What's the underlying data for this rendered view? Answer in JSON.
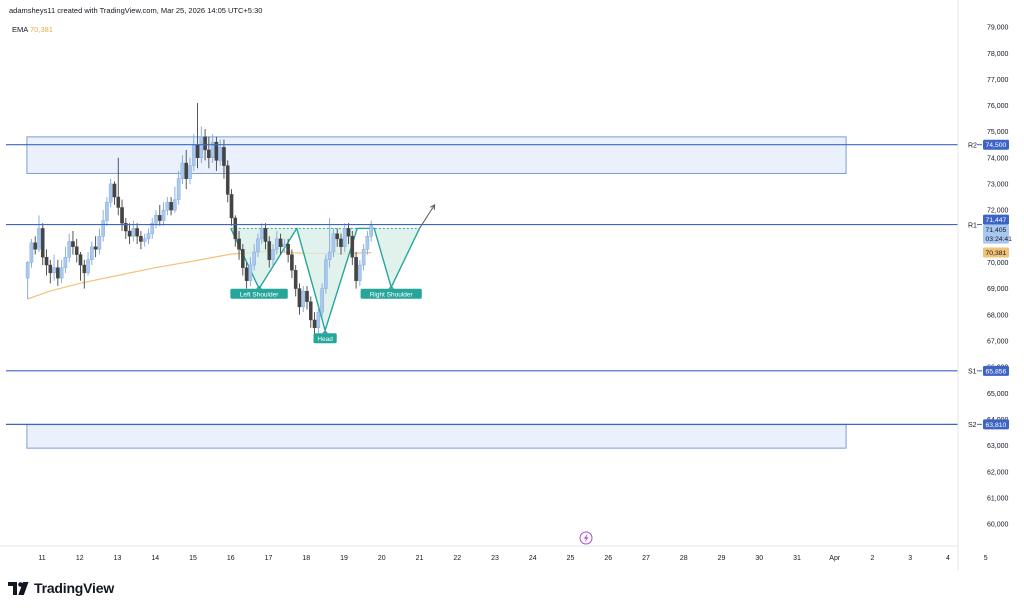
{
  "header": {
    "attribution": "adamsheys11 created with TradingView.com, Mar 25, 2026 14:05 UTC+5:30"
  },
  "indicator": {
    "name": "EMA",
    "value": "70,381"
  },
  "brand": {
    "name": "TradingView"
  },
  "colors": {
    "up": "#a9c8ef",
    "down": "#444444",
    "ema": "#f3c27a",
    "level": "#3d64c4",
    "zone_fill": "#eaf1fc",
    "zone_stroke": "#7b9dd6",
    "pattern_line": "#26a69a",
    "pattern_fill": "#d7eee7",
    "label_bg": "#26a69a",
    "ema_badge": "#f3c27a",
    "price_badge": "#a9c8ef"
  },
  "chart_data": {
    "type": "candlestick",
    "title": "",
    "xlabel": "",
    "ylabel": "",
    "ylim": [
      59500,
      79300
    ],
    "grid": false,
    "y_ticks": [
      79000,
      78000,
      77000,
      76000,
      75000,
      74000,
      73000,
      72000,
      71000,
      70000,
      69000,
      68000,
      67000,
      66000,
      65000,
      64000,
      63000,
      62000,
      61000,
      60000
    ],
    "x_ticks": [
      "11",
      "12",
      "13",
      "14",
      "15",
      "16",
      "17",
      "18",
      "19",
      "20",
      "21",
      "22",
      "23",
      "24",
      "25",
      "26",
      "27",
      "28",
      "29",
      "30",
      "31",
      "Apr",
      "2",
      "3",
      "4",
      "5"
    ],
    "x_tick_days": [
      11,
      12,
      13,
      14,
      15,
      16,
      17,
      18,
      19,
      20,
      21,
      22,
      23,
      24,
      25,
      26,
      27,
      28,
      29,
      30,
      31,
      32,
      33,
      34,
      35,
      36
    ],
    "candles": [
      [
        10.62,
        69400,
        70000,
        68600,
        70050
      ],
      [
        10.72,
        70000,
        70750,
        69800,
        70900
      ],
      [
        10.82,
        70750,
        70500,
        70300,
        71000
      ],
      [
        10.92,
        70500,
        71300,
        70400,
        71800
      ],
      [
        11.02,
        71300,
        70200,
        69900,
        71500
      ],
      [
        11.12,
        70200,
        69900,
        69500,
        70500
      ],
      [
        11.22,
        69900,
        69600,
        69200,
        70100
      ],
      [
        11.32,
        69600,
        69800,
        69300,
        70300
      ],
      [
        11.42,
        69800,
        69400,
        69100,
        70100
      ],
      [
        11.52,
        69400,
        69800,
        69200,
        70100
      ],
      [
        11.62,
        69800,
        70200,
        69600,
        70600
      ],
      [
        11.72,
        70200,
        70800,
        70000,
        71100
      ],
      [
        11.82,
        70800,
        70600,
        70300,
        71200
      ],
      [
        11.92,
        70600,
        70300,
        70000,
        70900
      ],
      [
        12.02,
        70300,
        69900,
        69300,
        70400
      ],
      [
        12.12,
        69900,
        69600,
        69000,
        70100
      ],
      [
        12.22,
        69600,
        70100,
        69500,
        70400
      ],
      [
        12.32,
        70100,
        70600,
        69900,
        70800
      ],
      [
        12.42,
        70600,
        70500,
        70200,
        71000
      ],
      [
        12.52,
        70500,
        71000,
        70300,
        71300
      ],
      [
        12.62,
        71000,
        71600,
        70800,
        72000
      ],
      [
        12.72,
        71600,
        72300,
        71400,
        72500
      ],
      [
        12.82,
        72300,
        73000,
        72100,
        73200
      ],
      [
        12.92,
        73000,
        72500,
        72200,
        73100
      ],
      [
        13.02,
        72500,
        72100,
        71800,
        74000
      ],
      [
        13.12,
        72100,
        71500,
        71200,
        72400
      ],
      [
        13.22,
        71500,
        71200,
        70900,
        71700
      ],
      [
        13.32,
        71200,
        71000,
        70700,
        71500
      ],
      [
        13.42,
        71000,
        71300,
        70800,
        71600
      ],
      [
        13.52,
        71300,
        71000,
        70700,
        71500
      ],
      [
        13.62,
        71000,
        70800,
        70500,
        71200
      ],
      [
        13.72,
        70800,
        70900,
        70600,
        71100
      ],
      [
        13.82,
        70900,
        71100,
        70700,
        71300
      ],
      [
        13.92,
        71100,
        71500,
        70900,
        71700
      ],
      [
        14.02,
        71500,
        71800,
        71300,
        72000
      ],
      [
        14.12,
        71800,
        71600,
        71400,
        72200
      ],
      [
        14.22,
        71600,
        72000,
        71400,
        72300
      ],
      [
        14.32,
        72000,
        72300,
        71800,
        72500
      ],
      [
        14.42,
        72300,
        72000,
        71800,
        72500
      ],
      [
        14.52,
        72000,
        72400,
        71900,
        72900
      ],
      [
        14.62,
        72400,
        73200,
        72200,
        73500
      ],
      [
        14.72,
        73200,
        73800,
        73000,
        74100
      ],
      [
        14.82,
        73800,
        73200,
        72800,
        74300
      ],
      [
        14.92,
        73200,
        73700,
        73000,
        74000
      ],
      [
        15.02,
        73700,
        74500,
        73500,
        74900
      ],
      [
        15.12,
        74500,
        74000,
        73600,
        76100
      ],
      [
        15.22,
        74000,
        74800,
        73800,
        75200
      ],
      [
        15.32,
        74800,
        74300,
        73900,
        75100
      ],
      [
        15.42,
        74300,
        74000,
        73600,
        74800
      ],
      [
        15.52,
        74000,
        74600,
        73800,
        74900
      ],
      [
        15.62,
        74600,
        73900,
        73500,
        74800
      ],
      [
        15.72,
        73900,
        74400,
        73700,
        74700
      ],
      [
        15.82,
        74400,
        73700,
        73200,
        74700
      ],
      [
        15.92,
        73700,
        72600,
        72300,
        73900
      ],
      [
        16.02,
        72600,
        71700,
        71400,
        72800
      ],
      [
        16.12,
        71700,
        70900,
        70600,
        71800
      ],
      [
        16.22,
        70900,
        70500,
        70100,
        71200
      ],
      [
        16.32,
        70500,
        69800,
        69500,
        70700
      ],
      [
        16.42,
        69800,
        69300,
        69000,
        70000
      ],
      [
        16.52,
        69300,
        69900,
        69100,
        70200
      ],
      [
        16.62,
        69900,
        70400,
        69700,
        70700
      ],
      [
        16.72,
        70400,
        70900,
        70200,
        71100
      ],
      [
        16.82,
        70900,
        71300,
        70700,
        71500
      ],
      [
        16.92,
        71300,
        70800,
        70500,
        71500
      ],
      [
        17.02,
        70800,
        70100,
        69800,
        71000
      ],
      [
        17.12,
        70100,
        70500,
        69900,
        70700
      ],
      [
        17.22,
        70500,
        70900,
        70300,
        71200
      ],
      [
        17.32,
        70900,
        70600,
        70300,
        71100
      ],
      [
        17.42,
        70600,
        70700,
        70400,
        70900
      ],
      [
        17.52,
        70700,
        70300,
        70000,
        70900
      ],
      [
        17.62,
        70300,
        69700,
        69400,
        70500
      ],
      [
        17.72,
        69700,
        69000,
        68700,
        69900
      ],
      [
        17.82,
        69000,
        68300,
        68000,
        69200
      ],
      [
        17.92,
        68300,
        68900,
        68100,
        69100
      ],
      [
        18.02,
        68900,
        68500,
        68200,
        69100
      ],
      [
        18.12,
        68500,
        67800,
        67500,
        68700
      ],
      [
        18.22,
        67800,
        67500,
        67200,
        68100
      ],
      [
        18.32,
        67500,
        68100,
        67300,
        68300
      ],
      [
        18.42,
        68100,
        69000,
        67900,
        69200
      ],
      [
        18.52,
        69000,
        70100,
        68800,
        70300
      ],
      [
        18.62,
        70100,
        70400,
        69800,
        71700
      ],
      [
        18.72,
        70400,
        71100,
        70200,
        71300
      ],
      [
        18.82,
        71100,
        70900,
        70600,
        71300
      ],
      [
        18.92,
        70900,
        70600,
        70300,
        71100
      ],
      [
        19.02,
        70600,
        71300,
        70400,
        71500
      ],
      [
        19.12,
        71300,
        71000,
        70700,
        71500
      ],
      [
        19.22,
        71000,
        70200,
        69900,
        71200
      ],
      [
        19.32,
        70200,
        69300,
        69000,
        70400
      ],
      [
        19.42,
        69300,
        69900,
        69100,
        70100
      ],
      [
        19.52,
        69900,
        70500,
        69700,
        70700
      ],
      [
        19.62,
        70500,
        71000,
        70300,
        71200
      ],
      [
        19.72,
        71000,
        71405,
        70800,
        71600
      ]
    ],
    "ema": {
      "name": "EMA",
      "points": [
        [
          10.62,
          68600
        ],
        [
          11.2,
          68900
        ],
        [
          12.0,
          69200
        ],
        [
          13.0,
          69500
        ],
        [
          14.0,
          69800
        ],
        [
          15.0,
          70050
        ],
        [
          16.0,
          70320
        ],
        [
          17.0,
          70420
        ],
        [
          18.0,
          70350
        ],
        [
          19.0,
          70330
        ],
        [
          19.72,
          70381
        ]
      ]
    },
    "levels": [
      {
        "label": "R2",
        "value": 74500,
        "price_text": "74,500"
      },
      {
        "label": "R1",
        "value": 71447,
        "price_text": "71,447"
      },
      {
        "label": "S1",
        "value": 65856,
        "price_text": "65,856"
      },
      {
        "label": "S2",
        "value": 63810,
        "price_text": "63,810"
      }
    ],
    "zones": [
      {
        "from_day": 10.6,
        "to_day": 32.3,
        "top": 74800,
        "bottom": 73400
      },
      {
        "from_day": 10.6,
        "to_day": 32.3,
        "top": 63800,
        "bottom": 62900
      }
    ],
    "price_axis_labels": {
      "current_price": "71,405",
      "countdown": "03:24:41",
      "ema_value": "70,381"
    },
    "pattern": {
      "neckline": 71300,
      "points": [
        [
          16.0,
          71300
        ],
        [
          16.75,
          69000
        ],
        [
          17.75,
          71300
        ],
        [
          18.5,
          67400
        ],
        [
          19.35,
          71300
        ],
        [
          19.8,
          71300
        ],
        [
          20.25,
          69050
        ],
        [
          21.0,
          71300
        ]
      ],
      "arrow": {
        "from": [
          21.0,
          71300
        ],
        "to": [
          21.4,
          72200
        ]
      },
      "labels": [
        {
          "text": "Left Shoulder",
          "day": 16.75,
          "value": 68800
        },
        {
          "text": "Head",
          "day": 18.5,
          "value": 67100
        },
        {
          "text": "Right Shoulder",
          "day": 20.25,
          "value": 68800
        }
      ]
    }
  }
}
